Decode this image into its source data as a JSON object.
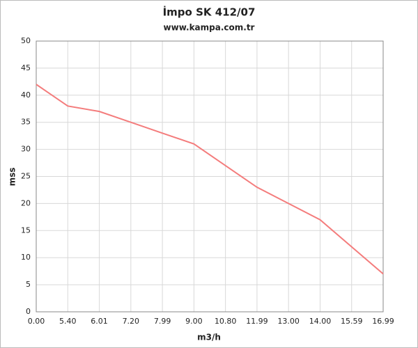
{
  "chart_data": {
    "type": "line",
    "title": "İmpo SK 412/07",
    "subtitle": "www.kampa.com.tr",
    "x_label": "m3/h",
    "y_label": "mss",
    "categories": [
      "0.00",
      "5.40",
      "6.01",
      "7.20",
      "7.99",
      "9.00",
      "10.80",
      "11.99",
      "13.00",
      "14.00",
      "15.59",
      "16.99"
    ],
    "series": [
      {
        "name": "İmpo SK 412/07",
        "color": "#f47c7c",
        "values": [
          42,
          38,
          37,
          35,
          33,
          31,
          27,
          23,
          20,
          17,
          12,
          7
        ]
      }
    ],
    "ylim": [
      0,
      50
    ],
    "yticks": [
      0,
      5,
      10,
      15,
      20,
      25,
      30,
      35,
      40,
      45,
      50
    ],
    "grid": true
  }
}
